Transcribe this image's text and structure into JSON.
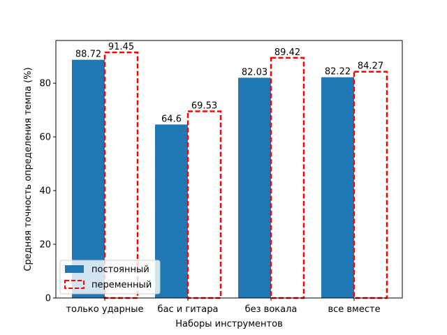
{
  "chart_data": {
    "type": "bar",
    "title": "",
    "xlabel": "Наборы инструментов",
    "ylabel": "Средняя точность определения темпа (%)",
    "categories": [
      "только ударные",
      "бас и гитара",
      "без вокала",
      "все вместе"
    ],
    "series": [
      {
        "name": "постоянный",
        "values": [
          88.72,
          64.6,
          82.03,
          82.22
        ],
        "labels": [
          "88.72",
          "64.6",
          "82.03",
          "82.22"
        ],
        "style": "filled",
        "color": "#1f77b4"
      },
      {
        "name": "переменный",
        "values": [
          91.45,
          69.53,
          89.42,
          84.27
        ],
        "labels": [
          "91.45",
          "69.53",
          "89.42",
          "84.27"
        ],
        "style": "dashed-outline",
        "color": "#ff0000"
      }
    ],
    "ylim": [
      0,
      95.9
    ],
    "yticks": [
      0,
      20,
      40,
      60,
      80
    ],
    "grid": false,
    "legend_position": "lower-left"
  }
}
